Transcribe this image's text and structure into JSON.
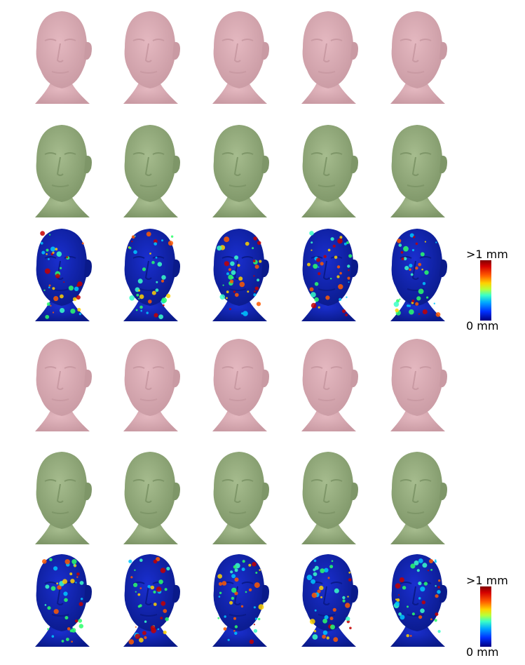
{
  "colorbars": [
    {
      "max_label": ">1 mm",
      "min_label": "0 mm"
    },
    {
      "max_label": ">1 mm",
      "min_label": "0 mm"
    }
  ],
  "colors": {
    "scan": "#e4b8c0",
    "scan_shadow": "#c99aa3",
    "model": "#a6bc8e",
    "model_shadow": "#7e9668",
    "heat_base": "#1a2fd0"
  },
  "rows": [
    {
      "kind": "scan-pink",
      "count": 5
    },
    {
      "kind": "model-green",
      "count": 5
    },
    {
      "kind": "error-heatmap",
      "count": 5
    },
    {
      "kind": "scan-pink",
      "count": 5
    },
    {
      "kind": "model-green",
      "count": 5
    },
    {
      "kind": "error-heatmap",
      "count": 5
    }
  ]
}
